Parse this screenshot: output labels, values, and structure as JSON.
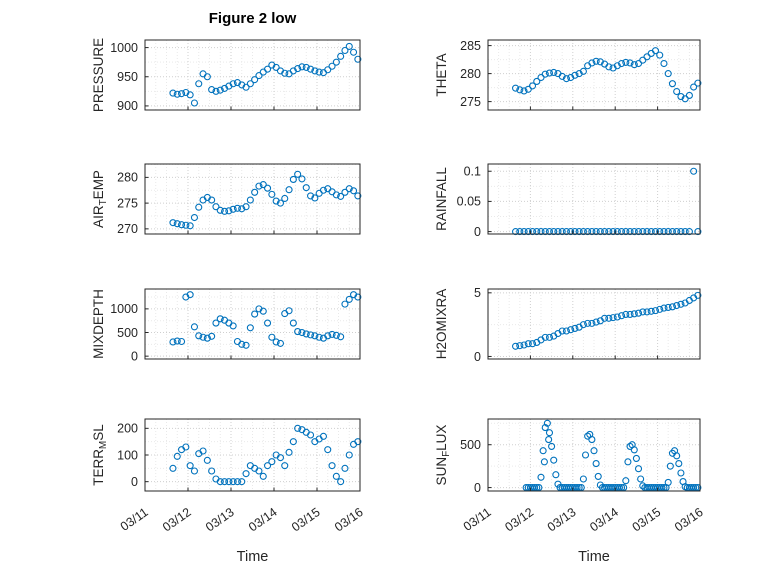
{
  "figure": {
    "title": "Figure 2 low",
    "xlabel": "Time",
    "background": "#ffffff",
    "marker_color": "#0072BD",
    "axis_color": "#262626",
    "grid_color": "#cfcfcf",
    "minor_grid_color": "#e9e9e9"
  },
  "x_axis": {
    "lim": [
      0,
      5
    ],
    "ticks": [
      0,
      1,
      2,
      3,
      4,
      5
    ],
    "tick_labels": [
      "03/11",
      "03/12",
      "03/13",
      "03/14",
      "03/15",
      "03/16"
    ]
  },
  "x_common": [
    0.65,
    0.75,
    0.85,
    0.95,
    1.05,
    1.15,
    1.25,
    1.35,
    1.45,
    1.55,
    1.65,
    1.75,
    1.85,
    1.95,
    2.05,
    2.15,
    2.25,
    2.35,
    2.45,
    2.55,
    2.65,
    2.75,
    2.85,
    2.95,
    3.05,
    3.15,
    3.25,
    3.35,
    3.45,
    3.55,
    3.65,
    3.75,
    3.85,
    3.95,
    4.05,
    4.15,
    4.25,
    4.35,
    4.45,
    4.55,
    4.65,
    4.75,
    4.85,
    4.95
  ],
  "chart_data": [
    {
      "name": "PRESSURE",
      "type": "scatter",
      "ylabel": "PRESSURE",
      "yticks": [
        900,
        950,
        1000
      ],
      "ylim": [
        893,
        1013
      ],
      "x": "x_common",
      "y": [
        922,
        920,
        921,
        923,
        919,
        905,
        938,
        955,
        950,
        928,
        925,
        927,
        930,
        934,
        938,
        940,
        936,
        932,
        938,
        945,
        952,
        958,
        963,
        970,
        966,
        960,
        956,
        955,
        960,
        964,
        967,
        966,
        963,
        960,
        958,
        957,
        962,
        968,
        975,
        985,
        995,
        1002,
        992,
        980
      ]
    },
    {
      "name": "THETA",
      "type": "scatter",
      "ylabel": "THETA",
      "yticks": [
        275,
        280,
        285
      ],
      "ylim": [
        273.5,
        286
      ],
      "x": "x_common",
      "y": [
        277.4,
        277.1,
        276.9,
        277.2,
        277.8,
        278.6,
        279.3,
        279.9,
        280.1,
        280.2,
        280.0,
        279.5,
        279.1,
        279.3,
        279.7,
        280.0,
        280.4,
        281.4,
        281.9,
        282.2,
        282.1,
        281.7,
        281.2,
        281.0,
        281.4,
        281.8,
        282.0,
        281.9,
        281.6,
        281.8,
        282.4,
        283.0,
        283.6,
        284.1,
        283.3,
        281.8,
        280.0,
        278.2,
        276.8,
        275.9,
        275.5,
        276.1,
        277.6,
        278.3
      ]
    },
    {
      "name": "AIR_TEMP",
      "type": "scatter",
      "ylabel": "AIR_{T}EMP",
      "yticks": [
        270,
        275,
        280
      ],
      "ylim": [
        269,
        282.6
      ],
      "x": "x_common",
      "y": [
        271.2,
        271.0,
        270.8,
        270.7,
        270.6,
        272.2,
        274.2,
        275.6,
        276.1,
        275.6,
        274.3,
        273.6,
        273.4,
        273.5,
        273.8,
        274.0,
        273.9,
        274.3,
        275.6,
        277.1,
        278.3,
        278.6,
        277.9,
        276.7,
        275.4,
        275.0,
        275.9,
        277.6,
        279.6,
        280.6,
        279.7,
        278.0,
        276.4,
        276.0,
        276.9,
        277.5,
        277.8,
        277.2,
        276.6,
        276.3,
        277.1,
        277.8,
        277.4,
        276.4
      ]
    },
    {
      "name": "RAINFALL",
      "type": "scatter",
      "ylabel": "RAINFALL",
      "yticks": [
        0,
        0.05,
        0.1
      ],
      "ylim": [
        -0.004,
        0.112
      ],
      "x": "x_common",
      "y": [
        0,
        0,
        0,
        0,
        0,
        0,
        0,
        0,
        0,
        0,
        0,
        0,
        0,
        0,
        0,
        0,
        0,
        0,
        0,
        0,
        0,
        0,
        0,
        0,
        0,
        0,
        0,
        0,
        0,
        0,
        0,
        0,
        0,
        0,
        0,
        0,
        0,
        0,
        0,
        0,
        0,
        0,
        0.1,
        0
      ]
    },
    {
      "name": "MIXDEPTH",
      "type": "scatter",
      "ylabel": "MIXDEPTH",
      "yticks": [
        0,
        500,
        1000
      ],
      "ylim": [
        -60,
        1420
      ],
      "x": "x_common",
      "y": [
        300,
        320,
        310,
        1250,
        1300,
        620,
        430,
        400,
        380,
        420,
        700,
        790,
        760,
        700,
        640,
        310,
        250,
        230,
        600,
        890,
        1000,
        950,
        700,
        400,
        300,
        270,
        900,
        960,
        700,
        520,
        500,
        470,
        450,
        430,
        400,
        380,
        430,
        460,
        440,
        410,
        1100,
        1200,
        1300,
        1250
      ]
    },
    {
      "name": "H2OMIXRA",
      "type": "scatter",
      "ylabel": "H2OMIXRA",
      "yticks": [
        0,
        5
      ],
      "ylim": [
        -0.2,
        5.3
      ],
      "x": "x_common",
      "y": [
        0.8,
        0.85,
        0.9,
        1.0,
        1.0,
        1.1,
        1.3,
        1.5,
        1.5,
        1.6,
        1.8,
        2.0,
        2.0,
        2.1,
        2.2,
        2.3,
        2.5,
        2.6,
        2.6,
        2.7,
        2.8,
        3.0,
        3.0,
        3.05,
        3.1,
        3.2,
        3.3,
        3.3,
        3.35,
        3.4,
        3.5,
        3.5,
        3.55,
        3.6,
        3.7,
        3.8,
        3.85,
        3.9,
        4.0,
        4.1,
        4.2,
        4.4,
        4.6,
        4.8
      ]
    },
    {
      "name": "TERR_MSL",
      "type": "scatter",
      "ylabel": "TERR_{M}SL",
      "yticks": [
        0,
        100,
        200
      ],
      "ylim": [
        -35,
        235
      ],
      "x": "x_common",
      "y": [
        50,
        95,
        120,
        130,
        60,
        40,
        105,
        115,
        80,
        40,
        10,
        0,
        0,
        0,
        0,
        0,
        0,
        30,
        60,
        50,
        40,
        20,
        60,
        75,
        100,
        90,
        60,
        110,
        150,
        200,
        195,
        185,
        175,
        150,
        160,
        170,
        120,
        60,
        20,
        0,
        50,
        100,
        140,
        150
      ]
    },
    {
      "name": "SUN_FLUX",
      "type": "scatter",
      "ylabel": "SUN_{F}LUX",
      "yticks": [
        0,
        500
      ],
      "ylim": [
        -40,
        800
      ],
      "x": [
        0.9,
        0.95,
        1.0,
        1.05,
        1.1,
        1.15,
        1.2,
        1.25,
        1.3,
        1.33,
        1.35,
        1.4,
        1.43,
        1.45,
        1.5,
        1.55,
        1.6,
        1.65,
        1.7,
        1.75,
        1.8,
        1.85,
        1.9,
        1.95,
        2.0,
        2.05,
        2.1,
        2.15,
        2.2,
        2.25,
        2.3,
        2.35,
        2.4,
        2.45,
        2.5,
        2.55,
        2.6,
        2.65,
        2.7,
        2.75,
        2.8,
        2.85,
        2.9,
        2.95,
        3.0,
        3.05,
        3.1,
        3.15,
        3.2,
        3.25,
        3.3,
        3.35,
        3.4,
        3.45,
        3.5,
        3.55,
        3.6,
        3.65,
        3.7,
        3.75,
        3.8,
        3.85,
        3.9,
        3.95,
        4.0,
        4.05,
        4.1,
        4.15,
        4.2,
        4.25,
        4.3,
        4.35,
        4.4,
        4.45,
        4.5,
        4.55,
        4.6,
        4.65,
        4.7,
        4.75,
        4.8,
        4.85,
        4.9,
        4.95
      ],
      "y": [
        0,
        0,
        0,
        0,
        0,
        0,
        0,
        120,
        430,
        300,
        700,
        750,
        560,
        640,
        480,
        320,
        150,
        40,
        0,
        0,
        0,
        0,
        0,
        0,
        0,
        0,
        0,
        0,
        0,
        100,
        380,
        600,
        620,
        560,
        430,
        280,
        130,
        30,
        0,
        0,
        0,
        0,
        0,
        0,
        0,
        0,
        0,
        0,
        0,
        80,
        300,
        480,
        500,
        440,
        340,
        220,
        100,
        20,
        0,
        0,
        0,
        0,
        0,
        0,
        0,
        0,
        0,
        0,
        0,
        60,
        250,
        400,
        430,
        370,
        280,
        170,
        70,
        10,
        0,
        0,
        0,
        0,
        0,
        0
      ]
    }
  ]
}
